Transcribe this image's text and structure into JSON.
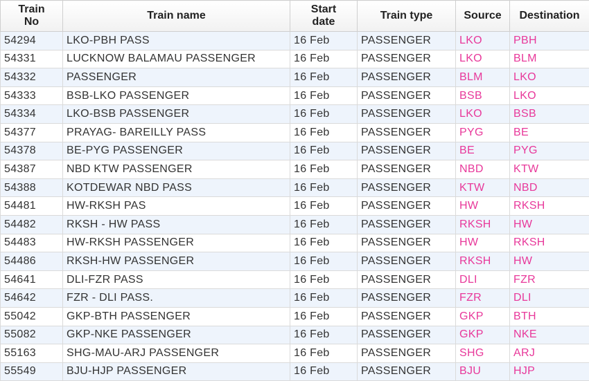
{
  "table": {
    "headers": [
      "Train No",
      "Train name",
      "Start date",
      "Train type",
      "Source",
      "Destination"
    ],
    "rows": [
      [
        "54294",
        "LKO-PBH PASS",
        "16 Feb",
        "PASSENGER",
        "LKO",
        "PBH"
      ],
      [
        "54331",
        "LUCKNOW BALAMAU PASSENGER",
        "16 Feb",
        "PASSENGER",
        "LKO",
        "BLM"
      ],
      [
        "54332",
        "PASSENGER",
        "16 Feb",
        "PASSENGER",
        "BLM",
        "LKO"
      ],
      [
        "54333",
        "BSB-LKO PASSENGER",
        "16 Feb",
        "PASSENGER",
        "BSB",
        "LKO"
      ],
      [
        "54334",
        "LKO-BSB PASSENGER",
        "16 Feb",
        "PASSENGER",
        "LKO",
        "BSB"
      ],
      [
        "54377",
        "PRAYAG- BAREILLY PASS",
        "16 Feb",
        "PASSENGER",
        "PYG",
        "BE"
      ],
      [
        "54378",
        "BE-PYG PASSENGER",
        "16 Feb",
        "PASSENGER",
        "BE",
        "PYG"
      ],
      [
        "54387",
        "NBD KTW PASSENGER",
        "16 Feb",
        "PASSENGER",
        "NBD",
        "KTW"
      ],
      [
        "54388",
        "KOTDEWAR NBD PASS",
        "16 Feb",
        "PASSENGER",
        "KTW",
        "NBD"
      ],
      [
        "54481",
        "HW-RKSH PAS",
        "16 Feb",
        "PASSENGER",
        "HW",
        "RKSH"
      ],
      [
        "54482",
        "RKSH - HW PASS",
        "16 Feb",
        "PASSENGER",
        "RKSH",
        "HW"
      ],
      [
        "54483",
        "HW-RKSH PASSENGER",
        "16 Feb",
        "PASSENGER",
        "HW",
        "RKSH"
      ],
      [
        "54486",
        "RKSH-HW PASSENGER",
        "16 Feb",
        "PASSENGER",
        "RKSH",
        "HW"
      ],
      [
        "54641",
        "DLI-FZR PASS",
        "16 Feb",
        "PASSENGER",
        "DLI",
        "FZR"
      ],
      [
        "54642",
        "FZR - DLI PASS.",
        "16 Feb",
        "PASSENGER",
        "FZR",
        "DLI"
      ],
      [
        "55042",
        "GKP-BTH PASSENGER",
        "16 Feb",
        "PASSENGER",
        "GKP",
        "BTH"
      ],
      [
        "55082",
        "GKP-NKE PASSENGER",
        "16 Feb",
        "PASSENGER",
        "GKP",
        "NKE"
      ],
      [
        "55163",
        "SHG-MAU-ARJ PASSENGER",
        "16 Feb",
        "PASSENGER",
        "SHG",
        "ARJ"
      ],
      [
        "55549",
        "BJU-HJP PASSENGER",
        "16 Feb",
        "PASSENGER",
        "BJU",
        "HJP"
      ]
    ]
  }
}
